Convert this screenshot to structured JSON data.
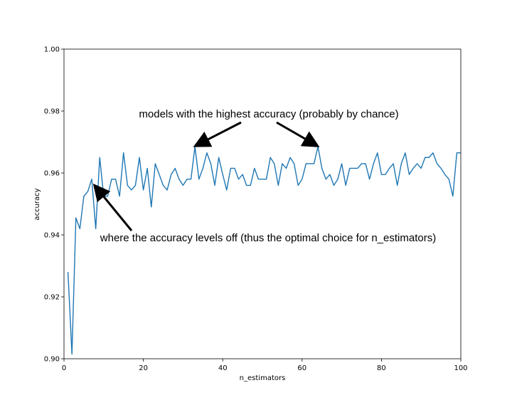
{
  "chart_data": {
    "type": "line",
    "title": "",
    "xlabel": "n_estimators",
    "ylabel": "accuracy",
    "xlim": [
      0,
      100
    ],
    "ylim": [
      0.9,
      1.0
    ],
    "xticks": [
      0,
      20,
      40,
      60,
      80,
      100
    ],
    "yticks": [
      0.9,
      0.92,
      0.94,
      0.96,
      0.98,
      1.0
    ],
    "xtick_labels": [
      "0",
      "20",
      "40",
      "60",
      "80",
      "100"
    ],
    "ytick_labels": [
      "0.90",
      "0.92",
      "0.94",
      "0.96",
      "0.98",
      "1.00"
    ],
    "grid": false,
    "line_color": "#1f77b4",
    "series": [
      {
        "x": [
          1,
          2,
          3,
          4,
          5,
          6,
          7,
          8,
          9,
          10,
          11,
          12,
          13,
          14,
          15,
          16,
          17,
          18,
          19,
          20,
          21,
          22,
          23,
          24,
          25,
          26,
          27,
          28,
          29,
          30,
          31,
          32,
          33,
          34,
          35,
          36,
          37,
          38,
          39,
          40,
          41,
          42,
          43,
          44,
          45,
          46,
          47,
          48,
          49,
          50,
          51,
          52,
          53,
          54,
          55,
          56,
          57,
          58,
          59,
          60,
          61,
          62,
          63,
          64,
          65,
          66,
          67,
          68,
          69,
          70,
          71,
          72,
          73,
          74,
          75,
          76,
          77,
          78,
          79,
          80,
          81,
          82,
          83,
          84,
          85,
          86,
          87,
          88,
          89,
          90,
          91,
          92,
          93,
          94,
          95,
          96,
          97,
          98,
          99,
          100
        ],
        "values": [
          0.928,
          0.9015,
          0.9455,
          0.942,
          0.9525,
          0.954,
          0.958,
          0.942,
          0.965,
          0.9525,
          0.9525,
          0.958,
          0.958,
          0.9525,
          0.9665,
          0.956,
          0.9545,
          0.956,
          0.965,
          0.9545,
          0.9615,
          0.949,
          0.963,
          0.9595,
          0.956,
          0.9545,
          0.9595,
          0.9615,
          0.958,
          0.956,
          0.958,
          0.958,
          0.9685,
          0.958,
          0.9615,
          0.9665,
          0.963,
          0.956,
          0.965,
          0.9595,
          0.9545,
          0.9615,
          0.9615,
          0.958,
          0.9595,
          0.956,
          0.956,
          0.9615,
          0.958,
          0.958,
          0.958,
          0.965,
          0.963,
          0.956,
          0.963,
          0.9615,
          0.965,
          0.963,
          0.956,
          0.958,
          0.963,
          0.963,
          0.963,
          0.9685,
          0.9615,
          0.958,
          0.9595,
          0.956,
          0.958,
          0.963,
          0.956,
          0.9615,
          0.9615,
          0.9615,
          0.963,
          0.963,
          0.958,
          0.963,
          0.9665,
          0.9595,
          0.9595,
          0.9615,
          0.963,
          0.956,
          0.963,
          0.9665,
          0.9595,
          0.9615,
          0.963,
          0.9615,
          0.965,
          0.965,
          0.9665,
          0.963,
          0.9615,
          0.9595,
          0.958,
          0.9525,
          0.9665,
          0.9665
        ]
      }
    ],
    "annotations": [
      {
        "text": "models with the highest accuracy (probably by chance)",
        "arrows_to": [
          [
            33.5,
            0.969
          ],
          [
            63.5,
            0.969
          ]
        ]
      },
      {
        "text": "where the accuracy levels off (thus the optimal choice for n_estimators)",
        "arrows_to": [
          [
            8,
            0.9555
          ]
        ]
      }
    ]
  }
}
